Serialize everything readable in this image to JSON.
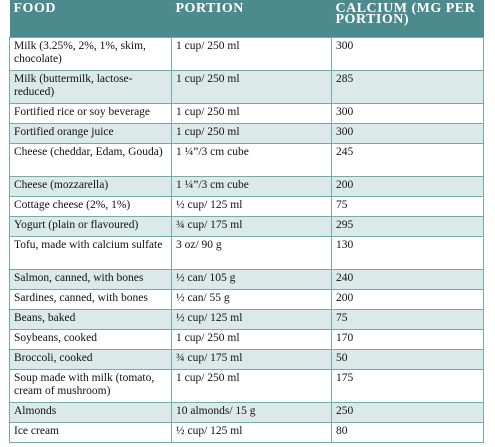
{
  "table": {
    "headers": [
      "FOOD",
      "PORTION",
      "CALCIUM (MG PER PORTION)"
    ],
    "rows": [
      {
        "food": "Milk (3.25%, 2%, 1%, skim, chocolate)",
        "portion": "1 cup/ 250 ml",
        "calcium": "300"
      },
      {
        "food": "Milk (buttermilk, lactose-reduced)",
        "portion": "1 cup/ 250 ml",
        "calcium": "285"
      },
      {
        "food": "Fortified rice or soy beverage",
        "portion": "1 cup/ 250 ml",
        "calcium": "300"
      },
      {
        "food": "Fortified orange juice",
        "portion": "1 cup/ 250 ml",
        "calcium": "300"
      },
      {
        "food": "Cheese (cheddar, Edam, Gouda)",
        "portion": "1 ¼”/3 cm cube",
        "calcium": "245"
      },
      {
        "food": "Cheese (mozzarella)",
        "portion": "1 ¼”/3 cm cube",
        "calcium": "200"
      },
      {
        "food": "Cottage cheese (2%, 1%)",
        "portion": "½ cup/ 125 ml",
        "calcium": "75"
      },
      {
        "food": "Yogurt (plain or flavoured)",
        "portion": "¾ cup/ 175 ml",
        "calcium": "295"
      },
      {
        "food": "Tofu, made with calcium sulfate",
        "portion": "3 oz/ 90 g",
        "calcium": "130"
      },
      {
        "food": "Salmon, canned, with bones",
        "portion": "½ can/ 105 g",
        "calcium": "240"
      },
      {
        "food": "Sardines, canned, with bones",
        "portion": "½ can/ 55 g",
        "calcium": "200"
      },
      {
        "food": "Beans, baked",
        "portion": "½ cup/ 125 ml",
        "calcium": "75"
      },
      {
        "food": "Soybeans, cooked",
        "portion": "1 cup/ 250 ml",
        "calcium": "170"
      },
      {
        "food": "Broccoli, cooked",
        "portion": "¾ cup/ 175 ml",
        "calcium": "50"
      },
      {
        "food": "Soup made with milk (tomato, cream of mushroom)",
        "portion": "1 cup/ 250 ml",
        "calcium": "175"
      },
      {
        "food": "Almonds",
        "portion": "10 almonds/ 15 g",
        "calcium": "250"
      },
      {
        "food": "Ice cream",
        "portion": "½ cup/ 125 ml",
        "calcium": "80"
      }
    ]
  },
  "colors": {
    "header_bg": "#4d8a8d",
    "stripe_bg": "#dce9e9",
    "border": "#7aa9ab"
  }
}
